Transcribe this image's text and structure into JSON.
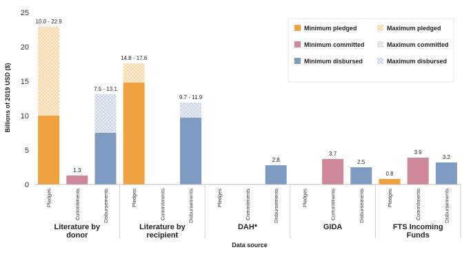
{
  "chart_data": {
    "type": "bar",
    "title": "",
    "xlabel": "Data source",
    "ylabel": "Billions of 2019 USD ($)",
    "ylim": [
      0,
      25
    ],
    "yticks": [
      0,
      5,
      10,
      15,
      20,
      25
    ],
    "grid": false,
    "legend_position": "top-right",
    "colors": {
      "pledged": "#F0A241",
      "pledged_max": "#F9D5A3",
      "committed": "#CF8899",
      "committed_max": "#D9D9D9",
      "disbursed": "#7E9CC1",
      "disbursed_max": "#C8D4E3"
    },
    "legend": [
      {
        "label": "Minimum pledged",
        "kind": "pledged",
        "style": "solid"
      },
      {
        "label": "Maximum pledged",
        "kind": "pledged_max",
        "style": "hatch"
      },
      {
        "label": "Minimum committed",
        "kind": "committed",
        "style": "solid"
      },
      {
        "label": "Maximum committed",
        "kind": "committed_max",
        "style": "hatch"
      },
      {
        "label": "Minimum disbursed",
        "kind": "disbursed",
        "style": "solid"
      },
      {
        "label": "Maximum disbursed",
        "kind": "disbursed_max",
        "style": "hatch"
      }
    ],
    "groups": [
      {
        "name": "Literature by donor",
        "name_lines": [
          "Literature by",
          "donor"
        ],
        "bars": [
          {
            "category": "Pledges",
            "kind": "pledged",
            "min": 10.0,
            "max": 22.9,
            "label": "10.0 - 22.9"
          },
          {
            "category": "Commitments",
            "kind": "committed",
            "min": 1.3,
            "max": 1.3,
            "label": "1.3"
          },
          {
            "category": "Disbursements",
            "kind": "disbursed",
            "min": 7.5,
            "max": 13.1,
            "label": "7.5 - 13.1"
          }
        ]
      },
      {
        "name": "Literature by recipient",
        "name_lines": [
          "Literature by",
          "recipient"
        ],
        "bars": [
          {
            "category": "Pledges",
            "kind": "pledged",
            "min": 14.8,
            "max": 17.6,
            "label": "14.8 - 17.6"
          },
          {
            "category": "Commitments",
            "kind": "committed",
            "min": 0,
            "max": 0,
            "label": ""
          },
          {
            "category": "Disbursements",
            "kind": "disbursed",
            "min": 9.7,
            "max": 11.9,
            "label": "9.7 - 11.9"
          }
        ]
      },
      {
        "name": "DAH*",
        "name_lines": [
          "DAH*"
        ],
        "bars": [
          {
            "category": "Pledges",
            "kind": "pledged",
            "min": 0,
            "max": 0,
            "label": ""
          },
          {
            "category": "Commitments",
            "kind": "committed",
            "min": 0,
            "max": 0,
            "label": ""
          },
          {
            "category": "Disbursements",
            "kind": "disbursed",
            "min": 2.8,
            "max": 2.8,
            "label": "2.8"
          }
        ]
      },
      {
        "name": "GIDA",
        "name_lines": [
          "GIDA"
        ],
        "bars": [
          {
            "category": "Pledges",
            "kind": "pledged",
            "min": 0,
            "max": 0,
            "label": ""
          },
          {
            "category": "Commitments",
            "kind": "committed",
            "min": 3.7,
            "max": 3.7,
            "label": "3.7"
          },
          {
            "category": "Disbursements",
            "kind": "disbursed",
            "min": 2.5,
            "max": 2.5,
            "label": "2.5"
          }
        ]
      },
      {
        "name": "FTS Incoming Funds",
        "name_lines": [
          "FTS Incoming",
          "Funds"
        ],
        "bars": [
          {
            "category": "Pledges",
            "kind": "pledged",
            "min": 0.8,
            "max": 0.8,
            "label": "0.8"
          },
          {
            "category": "Commitments",
            "kind": "committed",
            "min": 3.9,
            "max": 3.9,
            "label": "3.9"
          },
          {
            "category": "Disbursements",
            "kind": "disbursed",
            "min": 3.2,
            "max": 3.2,
            "label": "3.2"
          }
        ]
      }
    ]
  }
}
